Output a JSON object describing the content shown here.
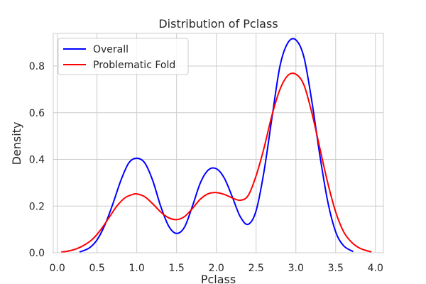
{
  "chart_data": {
    "type": "line",
    "title": "Distribution of Pclass",
    "xlabel": "Pclass",
    "ylabel": "Density",
    "xlim": [
      -0.05,
      4.1
    ],
    "ylim": [
      0,
      0.94
    ],
    "xticks": [
      0.0,
      0.5,
      1.0,
      1.5,
      2.0,
      2.5,
      3.0,
      3.5,
      4.0
    ],
    "xtick_labels": [
      "0.0",
      "0.5",
      "1.0",
      "1.5",
      "2.0",
      "2.5",
      "3.0",
      "3.5",
      "4.0"
    ],
    "yticks": [
      0.0,
      0.2,
      0.4,
      0.6,
      0.8
    ],
    "ytick_labels": [
      "0.0",
      "0.2",
      "0.4",
      "0.6",
      "0.8"
    ],
    "grid": true,
    "legend": {
      "position": "top-left"
    },
    "series": [
      {
        "name": "Overall",
        "color": "#0000ff",
        "x": [
          0.28,
          0.4,
          0.5,
          0.6,
          0.7,
          0.8,
          0.9,
          1.0,
          1.1,
          1.2,
          1.3,
          1.4,
          1.5,
          1.6,
          1.7,
          1.8,
          1.9,
          2.0,
          2.1,
          2.2,
          2.3,
          2.4,
          2.5,
          2.6,
          2.7,
          2.8,
          2.9,
          3.0,
          3.1,
          3.2,
          3.3,
          3.4,
          3.5,
          3.6,
          3.72
        ],
        "y": [
          0.003,
          0.02,
          0.055,
          0.12,
          0.21,
          0.31,
          0.385,
          0.405,
          0.385,
          0.31,
          0.2,
          0.115,
          0.083,
          0.11,
          0.2,
          0.3,
          0.355,
          0.36,
          0.32,
          0.24,
          0.155,
          0.122,
          0.18,
          0.35,
          0.58,
          0.8,
          0.9,
          0.912,
          0.84,
          0.65,
          0.42,
          0.22,
          0.09,
          0.03,
          0.005
        ]
      },
      {
        "name": "Problematic Fold",
        "color": "#ff0000",
        "x": [
          0.05,
          0.15,
          0.25,
          0.35,
          0.45,
          0.55,
          0.65,
          0.75,
          0.85,
          0.95,
          1.0,
          1.1,
          1.2,
          1.3,
          1.4,
          1.5,
          1.6,
          1.7,
          1.8,
          1.9,
          2.0,
          2.1,
          2.2,
          2.3,
          2.4,
          2.5,
          2.6,
          2.7,
          2.8,
          2.9,
          3.0,
          3.1,
          3.2,
          3.3,
          3.4,
          3.5,
          3.6,
          3.7,
          3.8,
          3.9,
          3.95
        ],
        "y": [
          0.003,
          0.008,
          0.018,
          0.035,
          0.06,
          0.1,
          0.15,
          0.2,
          0.235,
          0.25,
          0.252,
          0.24,
          0.21,
          0.175,
          0.15,
          0.142,
          0.155,
          0.19,
          0.23,
          0.253,
          0.258,
          0.25,
          0.235,
          0.225,
          0.245,
          0.33,
          0.45,
          0.59,
          0.7,
          0.76,
          0.765,
          0.72,
          0.6,
          0.45,
          0.3,
          0.175,
          0.09,
          0.045,
          0.02,
          0.008,
          0.004
        ]
      }
    ]
  }
}
